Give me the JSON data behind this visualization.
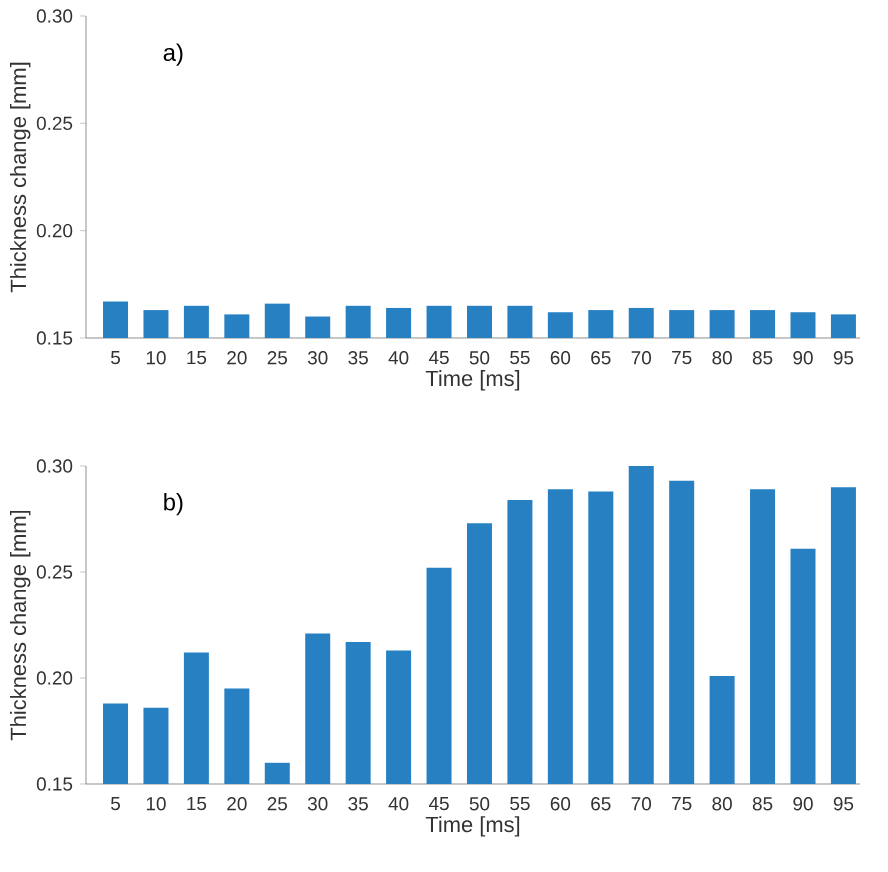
{
  "chart_data": [
    {
      "type": "bar",
      "xlabel": "Time [ms]",
      "ylabel": "Thickness change [mm]",
      "annotations": [
        "a)"
      ],
      "categories": [
        "5",
        "10",
        "15",
        "20",
        "25",
        "30",
        "35",
        "40",
        "45",
        "50",
        "55",
        "60",
        "65",
        "70",
        "75",
        "80",
        "85",
        "90",
        "95"
      ],
      "values": [
        0.167,
        0.163,
        0.165,
        0.161,
        0.166,
        0.16,
        0.165,
        0.164,
        0.165,
        0.165,
        0.165,
        0.162,
        0.163,
        0.164,
        0.163,
        0.163,
        0.163,
        0.162,
        0.161
      ],
      "color": "#2680c2",
      "ylim": [
        0.15,
        0.3
      ],
      "yticks": [
        {
          "value": 0.15,
          "label": "0.15"
        },
        {
          "value": 0.2,
          "label": "0.20"
        },
        {
          "value": 0.25,
          "label": "0.25"
        },
        {
          "value": 0.3,
          "label": "0.30"
        }
      ]
    },
    {
      "type": "bar",
      "xlabel": "Time [ms]",
      "ylabel": "Thickness change [mm]",
      "annotations": [
        "b)"
      ],
      "categories": [
        "5",
        "10",
        "15",
        "20",
        "25",
        "30",
        "35",
        "40",
        "45",
        "50",
        "55",
        "60",
        "65",
        "70",
        "75",
        "80",
        "85",
        "90",
        "95"
      ],
      "values": [
        0.188,
        0.186,
        0.212,
        0.195,
        0.16,
        0.221,
        0.217,
        0.213,
        0.252,
        0.273,
        0.284,
        0.289,
        0.288,
        0.3,
        0.293,
        0.201,
        0.289,
        0.261,
        0.29
      ],
      "color": "#2680c2",
      "ylim": [
        0.15,
        0.3
      ],
      "yticks": [
        {
          "value": 0.15,
          "label": "0.15"
        },
        {
          "value": 0.2,
          "label": "0.20"
        },
        {
          "value": 0.25,
          "label": "0.25"
        },
        {
          "value": 0.3,
          "label": "0.30"
        }
      ]
    }
  ]
}
